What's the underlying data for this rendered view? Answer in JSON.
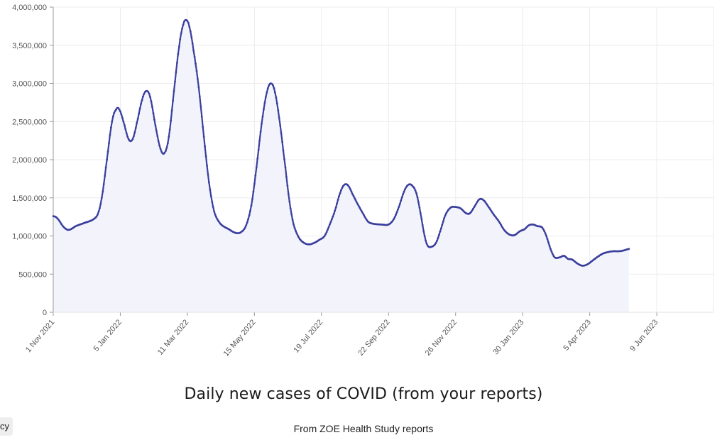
{
  "chart_data": {
    "type": "area",
    "title": "Daily new cases of COVID (from your reports)",
    "subtitle": "From ZOE Health Study reports",
    "ylim": [
      0,
      4000000
    ],
    "yticks": [
      {
        "value": 0,
        "label": "0"
      },
      {
        "value": 500000,
        "label": "500,000"
      },
      {
        "value": 1000000,
        "label": "1,000,000"
      },
      {
        "value": 1500000,
        "label": "1,500,000"
      },
      {
        "value": 2000000,
        "label": "2,000,000"
      },
      {
        "value": 2500000,
        "label": "2,500,000"
      },
      {
        "value": 3000000,
        "label": "3,000,000"
      },
      {
        "value": 3500000,
        "label": "3,500,000"
      },
      {
        "value": 4000000,
        "label": "4,000,000"
      }
    ],
    "xlim_days": [
      0,
      640
    ],
    "xticks": [
      {
        "day": 0,
        "label": "1 Nov 2021"
      },
      {
        "day": 65,
        "label": "5 Jan 2022"
      },
      {
        "day": 130,
        "label": "11 Mar 2022"
      },
      {
        "day": 195,
        "label": "15 May 2022"
      },
      {
        "day": 260,
        "label": "19 Jul 2022"
      },
      {
        "day": 325,
        "label": "22 Sep 2022"
      },
      {
        "day": 390,
        "label": "26 Nov 2022"
      },
      {
        "day": 455,
        "label": "30 Jan 2023"
      },
      {
        "day": 520,
        "label": "5 Apr 2023"
      },
      {
        "day": 585,
        "label": "9 Jun 2023"
      }
    ],
    "series": [
      {
        "name": "Daily new cases",
        "points": [
          [
            0,
            1260000
          ],
          [
            4,
            1230000
          ],
          [
            10,
            1120000
          ],
          [
            15,
            1080000
          ],
          [
            22,
            1130000
          ],
          [
            30,
            1170000
          ],
          [
            38,
            1210000
          ],
          [
            43,
            1280000
          ],
          [
            47,
            1500000
          ],
          [
            52,
            2000000
          ],
          [
            57,
            2500000
          ],
          [
            61,
            2660000
          ],
          [
            64,
            2660000
          ],
          [
            68,
            2500000
          ],
          [
            73,
            2270000
          ],
          [
            77,
            2270000
          ],
          [
            81,
            2480000
          ],
          [
            86,
            2780000
          ],
          [
            90,
            2900000
          ],
          [
            94,
            2820000
          ],
          [
            99,
            2450000
          ],
          [
            104,
            2140000
          ],
          [
            108,
            2090000
          ],
          [
            112,
            2300000
          ],
          [
            117,
            2900000
          ],
          [
            122,
            3480000
          ],
          [
            126,
            3770000
          ],
          [
            129,
            3830000
          ],
          [
            132,
            3740000
          ],
          [
            136,
            3430000
          ],
          [
            141,
            2950000
          ],
          [
            146,
            2300000
          ],
          [
            151,
            1700000
          ],
          [
            156,
            1320000
          ],
          [
            162,
            1160000
          ],
          [
            170,
            1090000
          ],
          [
            177,
            1040000
          ],
          [
            182,
            1050000
          ],
          [
            187,
            1140000
          ],
          [
            192,
            1400000
          ],
          [
            197,
            1900000
          ],
          [
            202,
            2470000
          ],
          [
            207,
            2880000
          ],
          [
            211,
            3000000
          ],
          [
            215,
            2880000
          ],
          [
            220,
            2450000
          ],
          [
            225,
            1900000
          ],
          [
            229,
            1450000
          ],
          [
            233,
            1150000
          ],
          [
            238,
            980000
          ],
          [
            243,
            910000
          ],
          [
            248,
            890000
          ],
          [
            253,
            910000
          ],
          [
            258,
            950000
          ],
          [
            263,
            1000000
          ],
          [
            268,
            1150000
          ],
          [
            273,
            1330000
          ],
          [
            278,
            1560000
          ],
          [
            282,
            1670000
          ],
          [
            286,
            1660000
          ],
          [
            290,
            1550000
          ],
          [
            295,
            1420000
          ],
          [
            300,
            1300000
          ],
          [
            305,
            1190000
          ],
          [
            310,
            1160000
          ],
          [
            318,
            1150000
          ],
          [
            325,
            1150000
          ],
          [
            330,
            1220000
          ],
          [
            335,
            1380000
          ],
          [
            340,
            1580000
          ],
          [
            344,
            1670000
          ],
          [
            348,
            1660000
          ],
          [
            352,
            1560000
          ],
          [
            356,
            1300000
          ],
          [
            360,
            1000000
          ],
          [
            363,
            870000
          ],
          [
            367,
            860000
          ],
          [
            371,
            910000
          ],
          [
            375,
            1060000
          ],
          [
            380,
            1270000
          ],
          [
            385,
            1370000
          ],
          [
            390,
            1380000
          ],
          [
            395,
            1360000
          ],
          [
            400,
            1300000
          ],
          [
            404,
            1300000
          ],
          [
            409,
            1400000
          ],
          [
            413,
            1480000
          ],
          [
            417,
            1470000
          ],
          [
            422,
            1380000
          ],
          [
            427,
            1280000
          ],
          [
            432,
            1190000
          ],
          [
            437,
            1080000
          ],
          [
            442,
            1020000
          ],
          [
            447,
            1010000
          ],
          [
            452,
            1060000
          ],
          [
            457,
            1090000
          ],
          [
            461,
            1140000
          ],
          [
            465,
            1150000
          ],
          [
            469,
            1130000
          ],
          [
            474,
            1110000
          ],
          [
            478,
            1000000
          ],
          [
            482,
            830000
          ],
          [
            486,
            720000
          ],
          [
            491,
            720000
          ],
          [
            495,
            740000
          ],
          [
            499,
            700000
          ],
          [
            503,
            690000
          ],
          [
            508,
            640000
          ],
          [
            513,
            610000
          ],
          [
            518,
            630000
          ],
          [
            523,
            680000
          ],
          [
            528,
            730000
          ],
          [
            533,
            770000
          ],
          [
            538,
            790000
          ],
          [
            543,
            800000
          ],
          [
            548,
            800000
          ],
          [
            553,
            810000
          ],
          [
            558,
            830000
          ]
        ]
      }
    ],
    "colors": {
      "line": "#3a3f9e",
      "fill": "#f3f4fb",
      "grid": "#ececec"
    }
  },
  "corner_tag": "cy"
}
